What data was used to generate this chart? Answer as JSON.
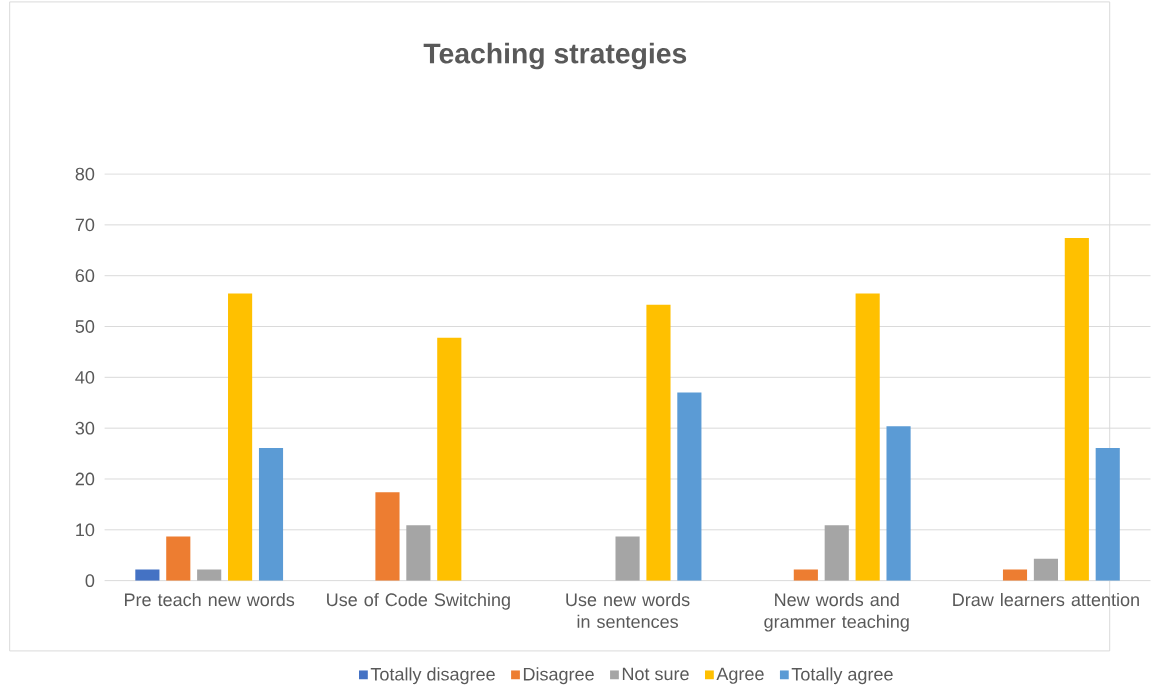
{
  "chart_data": {
    "type": "bar",
    "title": "Teaching strategies",
    "categories": [
      "Pre teach new words",
      "Use of Code Switching",
      "Use new words in sentences",
      "New words and grammer teaching",
      "Draw learners attention"
    ],
    "series": [
      {
        "name": "Totally disagree",
        "color": "#4472c4",
        "values": [
          2.2,
          null,
          null,
          null,
          null
        ]
      },
      {
        "name": "Disagree",
        "color": "#ed7d31",
        "values": [
          8.7,
          17.4,
          null,
          2.2,
          2.2
        ]
      },
      {
        "name": "Not sure",
        "color": "#a5a5a5",
        "values": [
          2.2,
          10.9,
          8.7,
          10.9,
          4.3
        ]
      },
      {
        "name": "Agree",
        "color": "#ffc000",
        "values": [
          56.5,
          47.8,
          54.3,
          56.5,
          67.4
        ]
      },
      {
        "name": "Totally agree",
        "color": "#5b9bd5",
        "values": [
          26.1,
          null,
          37.0,
          30.4,
          26.1
        ]
      }
    ],
    "ylim": [
      0,
      80
    ],
    "yticks": [
      0,
      10,
      20,
      30,
      40,
      50,
      60,
      70,
      80
    ],
    "grid": "y",
    "legend": "bottom"
  }
}
